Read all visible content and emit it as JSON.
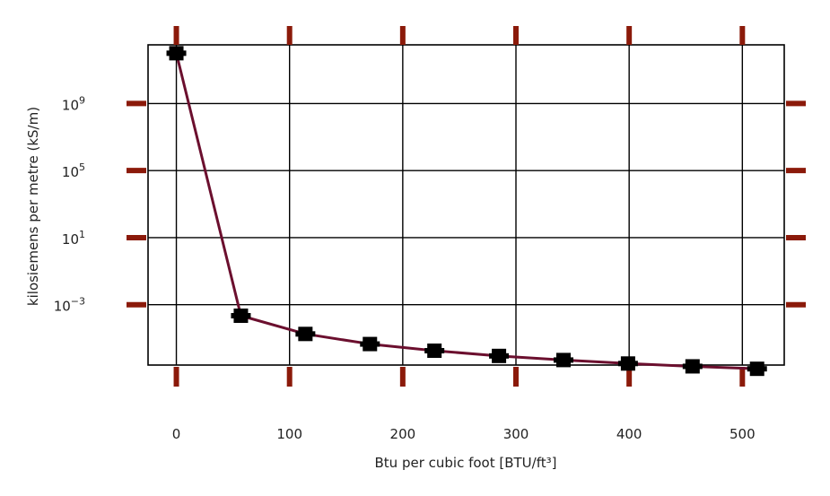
{
  "chart_data": {
    "type": "line",
    "xlabel": "Btu per cubic foot [BTU/ft³]",
    "ylabel": "kilosiemens per metre (kS/m)",
    "yscale": "log",
    "xlim": [
      -25,
      537
    ],
    "ylim_log10": [
      -6.6,
      12.5
    ],
    "grid": true,
    "x_ticks": [
      0,
      100,
      200,
      300,
      400,
      500
    ],
    "x_tick_labels": [
      "0",
      "100",
      "200",
      "300",
      "400",
      "500"
    ],
    "y_ticks_log10": [
      -3,
      1,
      5,
      9
    ],
    "y_tick_labels": [
      {
        "base": "10",
        "exp": "−3"
      },
      {
        "base": "10",
        "exp": "1"
      },
      {
        "base": "10",
        "exp": "5"
      },
      {
        "base": "10",
        "exp": "9"
      }
    ],
    "series": [
      {
        "x": [
          0,
          57,
          114,
          171,
          228,
          285,
          342,
          399,
          456,
          513
        ],
        "y": [
          1000000000000.0,
          0.00022,
          1.8e-05,
          4.5e-06,
          1.8e-06,
          8.8e-07,
          5e-07,
          3.1e-07,
          2.1e-07,
          1.5e-07
        ]
      }
    ],
    "colors": {
      "line": "#6b0f2e",
      "marker": "#000000",
      "tick_marks": "#8b1a0a",
      "grid": "#000000",
      "frame": "#000000"
    }
  }
}
